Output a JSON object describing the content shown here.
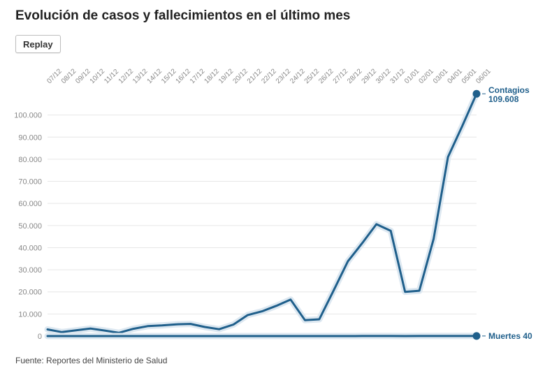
{
  "title": "Evolución de casos y fallecimientos en el último mes",
  "replay_label": "Replay",
  "source": "Fuente: Reportes del Ministerio de Salud",
  "colors": {
    "line": "#1f5f8b",
    "halo": "#dde8f1",
    "grid": "#e6e6e6",
    "tick": "#888888"
  },
  "chart_data": {
    "type": "line",
    "title": "Evolución de casos y fallecimientos en el último mes",
    "categories": [
      "07/12",
      "08/12",
      "09/12",
      "10/12",
      "11/12",
      "12/12",
      "13/12",
      "14/12",
      "15/12",
      "16/12",
      "17/12",
      "18/12",
      "19/12",
      "20/12",
      "21/12",
      "22/12",
      "23/12",
      "24/12",
      "25/12",
      "26/12",
      "27/12",
      "28/12",
      "29/12",
      "30/12",
      "31/12",
      "01/01",
      "02/01",
      "03/01",
      "04/01",
      "05/01",
      "06/01"
    ],
    "ylim": [
      0,
      110000
    ],
    "yticks": [
      {
        "value": 0,
        "label": "0"
      },
      {
        "value": 10000,
        "label": "10.000"
      },
      {
        "value": 20000,
        "label": "20.000"
      },
      {
        "value": 30000,
        "label": "30.000"
      },
      {
        "value": 40000,
        "label": "40.000"
      },
      {
        "value": 50000,
        "label": "50.000"
      },
      {
        "value": 60000,
        "label": "60.000"
      },
      {
        "value": 70000,
        "label": "70.000"
      },
      {
        "value": 80000,
        "label": "80.000"
      },
      {
        "value": 90000,
        "label": "90.000"
      },
      {
        "value": 100000,
        "label": "100.000"
      }
    ],
    "grid": true,
    "series": [
      {
        "name": "Contagios",
        "end_label_name": "Contagios",
        "end_label_value": "109.608",
        "values": [
          3000,
          1800,
          2600,
          3400,
          2500,
          1500,
          3300,
          4500,
          4800,
          5300,
          5500,
          4100,
          3100,
          5200,
          9500,
          11200,
          13700,
          16500,
          7200,
          7600,
          20500,
          33800,
          42000,
          50600,
          47600,
          20000,
          20500,
          44000,
          81000,
          95000,
          109608
        ]
      },
      {
        "name": "Muertes",
        "end_label_name": "Muertes",
        "end_label_value": "40",
        "values": [
          12,
          10,
          9,
          11,
          8,
          7,
          10,
          11,
          12,
          10,
          9,
          8,
          7,
          9,
          11,
          12,
          13,
          14,
          10,
          9,
          12,
          15,
          17,
          19,
          18,
          14,
          16,
          22,
          30,
          35,
          40
        ]
      }
    ]
  }
}
